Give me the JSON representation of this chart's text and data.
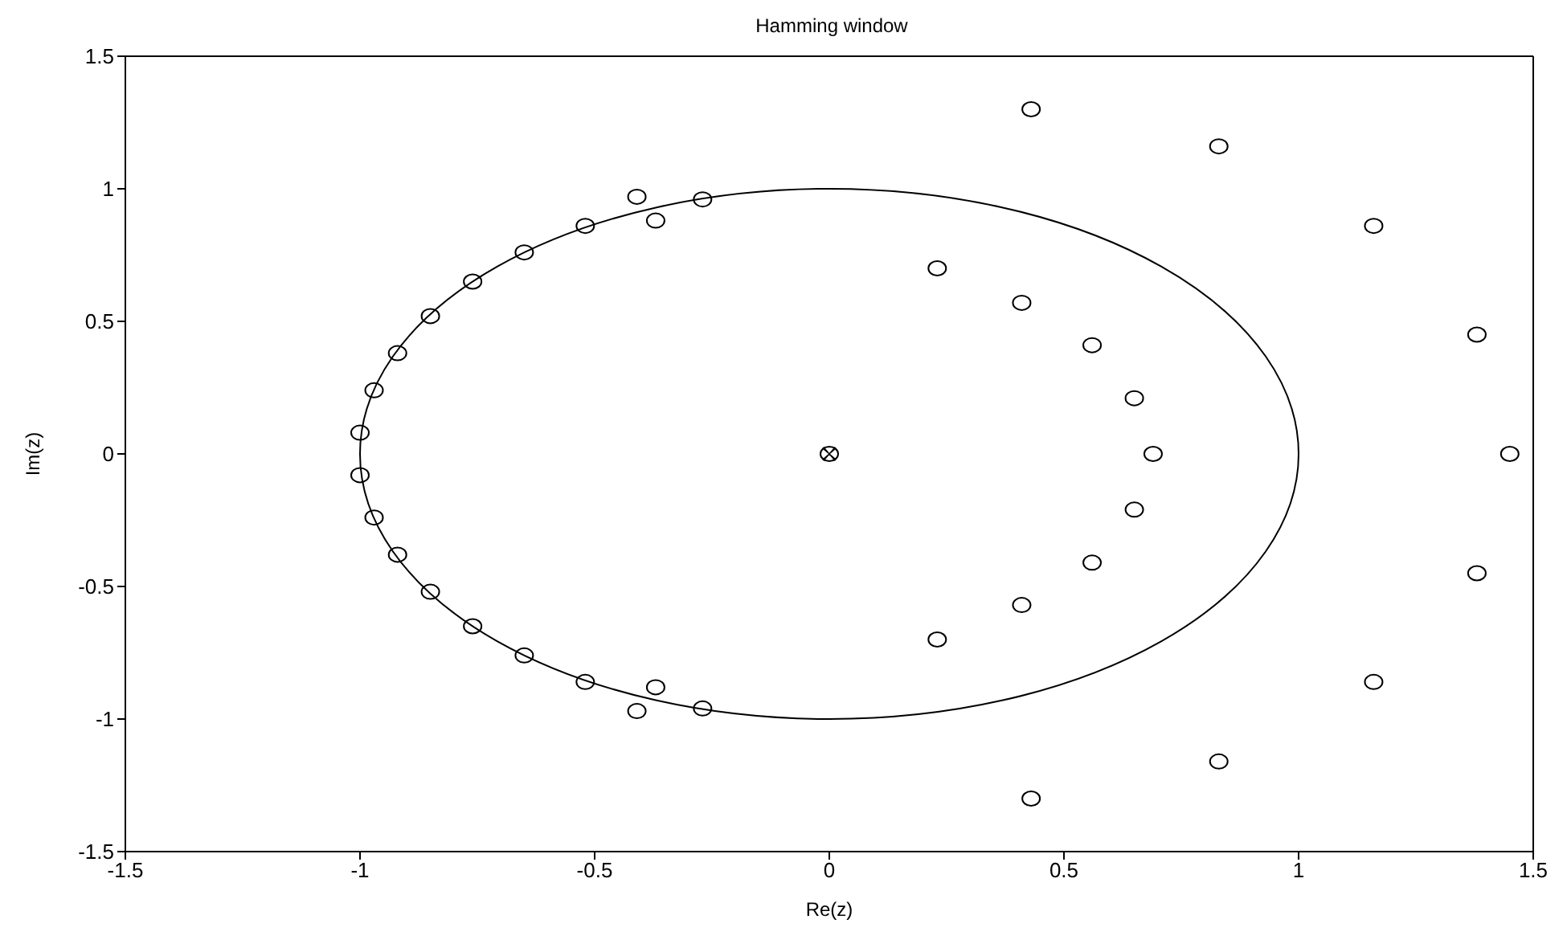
{
  "chart_data": {
    "type": "scatter",
    "title": "Hamming window",
    "xlabel": "Re(z)",
    "ylabel": "Im(z)",
    "xlim": [
      -1.5,
      1.5
    ],
    "ylim": [
      -1.5,
      1.5
    ],
    "xticks": [
      -1.5,
      -1,
      -0.5,
      0,
      0.5,
      1,
      1.5
    ],
    "yticks": [
      -1.5,
      -1,
      -0.5,
      0,
      0.5,
      1,
      1.5
    ],
    "series": [
      {
        "type": "scatter",
        "marker": "circle",
        "color": "#000000",
        "x": [
          0,
          0.69,
          1.45,
          0.43,
          0.43,
          0.83,
          0.83,
          1.16,
          1.16,
          1.38,
          1.38,
          0.23,
          0.23,
          0.41,
          0.41,
          0.56,
          0.56,
          0.65,
          0.65,
          -0.41,
          -0.41,
          -0.37,
          -0.37,
          -0.27,
          -0.27,
          -0.52,
          -0.52,
          -0.65,
          -0.65,
          -0.76,
          -0.76,
          -0.85,
          -0.85,
          -0.92,
          -0.92,
          -0.97,
          -0.97,
          -1.0,
          -1.0
        ],
        "values": [
          0,
          0,
          0,
          1.3,
          -1.3,
          1.16,
          -1.16,
          0.86,
          -0.86,
          0.45,
          -0.45,
          0.7,
          -0.7,
          0.57,
          -0.57,
          0.41,
          -0.41,
          0.21,
          -0.21,
          0.97,
          -0.97,
          0.88,
          -0.88,
          0.96,
          -0.96,
          0.86,
          -0.86,
          0.76,
          -0.76,
          0.65,
          -0.65,
          0.52,
          -0.52,
          0.38,
          -0.38,
          0.24,
          -0.24,
          0.08,
          -0.08
        ]
      },
      {
        "type": "scatter",
        "marker": "cross",
        "color": "#000000",
        "x": [
          0
        ],
        "values": [
          0
        ]
      }
    ]
  }
}
